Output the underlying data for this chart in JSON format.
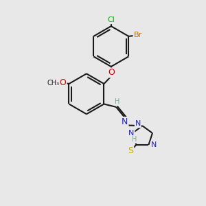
{
  "bg_color": "#e8e8e8",
  "bond_color": "#1a1a1a",
  "bond_width": 1.5,
  "atom_colors": {
    "C": "#1a1a1a",
    "H": "#7aaa9a",
    "N": "#2020cc",
    "O": "#cc0000",
    "S": "#ccaa00",
    "Br": "#cc6600",
    "Cl": "#00aa00"
  },
  "font_size": 9,
  "fig_size": [
    3.0,
    3.0
  ],
  "dpi": 100
}
